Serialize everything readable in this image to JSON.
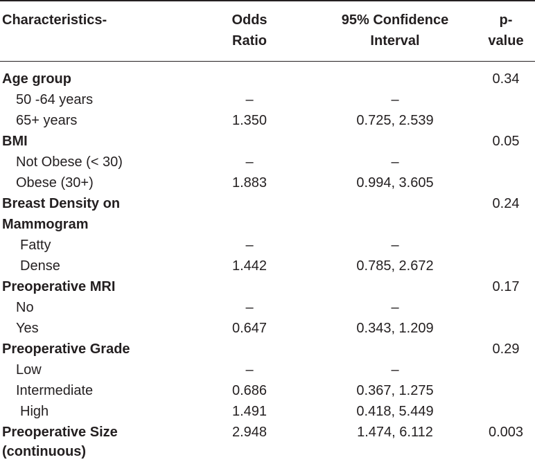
{
  "header": {
    "characteristics": "Characteristics-",
    "odds_ratio_1": "Odds",
    "odds_ratio_2": "Ratio",
    "ci_1": "95% Confidence",
    "ci_2": "Interval",
    "p_1": "p-",
    "p_2": "value"
  },
  "rows": [
    {
      "label": "Age group",
      "or": "",
      "ci": "",
      "p": "0.34"
    },
    {
      "label": "50 -64 years",
      "or": "–",
      "ci": "–",
      "p": ""
    },
    {
      "label": "65+ years",
      "or": "1.350",
      "ci": "0.725, 2.539",
      "p": ""
    },
    {
      "label": "BMI",
      "or": "",
      "ci": "",
      "p": "0.05"
    },
    {
      "label": "Not Obese (< 30)",
      "or": "–",
      "ci": "–",
      "p": ""
    },
    {
      "label": "Obese (30+)",
      "or": "1.883",
      "ci": "0.994, 3.605",
      "p": ""
    },
    {
      "label": "Breast Density on",
      "or": "",
      "ci": "",
      "p": "0.24"
    },
    {
      "label": "Mammogram",
      "or": "",
      "ci": "",
      "p": ""
    },
    {
      "label": "Fatty",
      "or": "–",
      "ci": "–",
      "p": ""
    },
    {
      "label": "Dense",
      "or": "1.442",
      "ci": "0.785, 2.672",
      "p": ""
    },
    {
      "label": "Preoperative MRI",
      "or": "",
      "ci": "",
      "p": "0.17"
    },
    {
      "label": "No",
      "or": "–",
      "ci": "–",
      "p": ""
    },
    {
      "label": "Yes",
      "or": "0.647",
      "ci": "0.343, 1.209",
      "p": ""
    },
    {
      "label": "Preoperative Grade",
      "or": "",
      "ci": "",
      "p": "0.29"
    },
    {
      "label": "Low",
      "or": "–",
      "ci": "–",
      "p": ""
    },
    {
      "label": "Intermediate",
      "or": "0.686",
      "ci": "0.367, 1.275",
      "p": ""
    },
    {
      "label": "High",
      "or": "1.491",
      "ci": "0.418, 5.449",
      "p": ""
    },
    {
      "label": "Preoperative Size",
      "or": "2.948",
      "ci": "1.474, 6.112",
      "p": "0.003"
    },
    {
      "label": "(continuous)",
      "or": "",
      "ci": "",
      "p": ""
    }
  ]
}
